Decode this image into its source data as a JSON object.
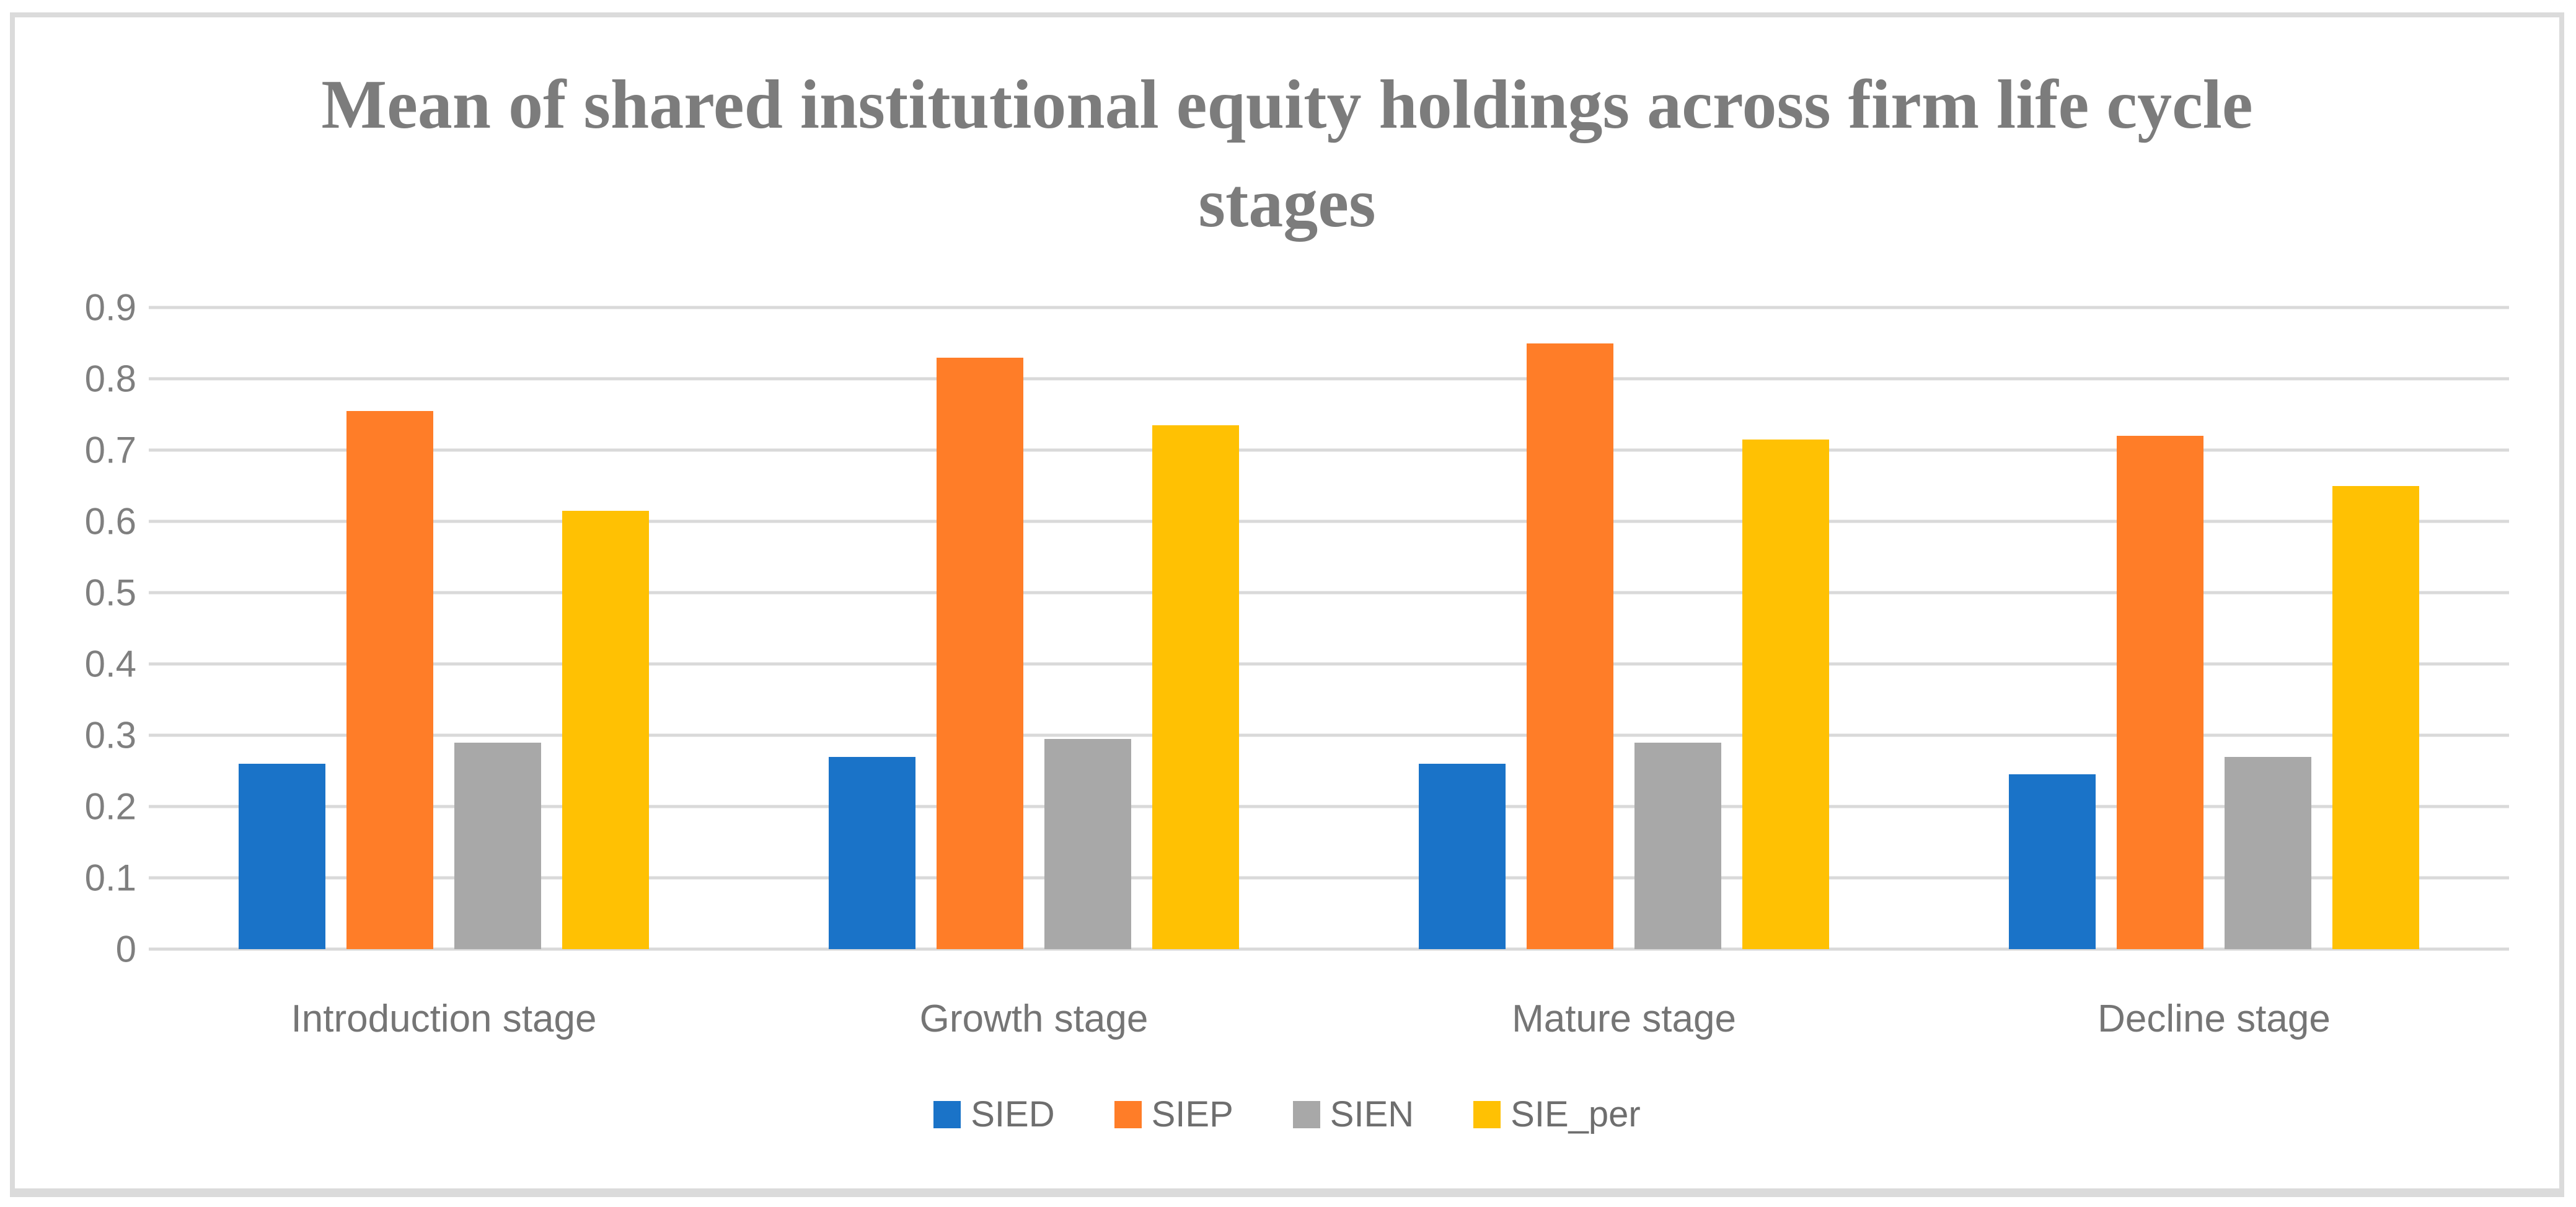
{
  "chart_data": {
    "type": "bar",
    "title": "Mean of shared institutional equity holdings across firm life cycle stages",
    "xlabel": "",
    "ylabel": "",
    "ylim": [
      0,
      0.9
    ],
    "grid": true,
    "legend_position": "bottom",
    "ytick_labels_top_to_bottom": [
      "0.9",
      "0.8",
      "0.7",
      "0.6",
      "0.5",
      "0.4",
      "0.3",
      "0.2",
      "0.1",
      "0"
    ],
    "categories": [
      "Introduction stage",
      "Growth stage",
      "Mature stage",
      "Decline stage"
    ],
    "series": [
      {
        "name": "SIED",
        "color": "#1a73c8",
        "values": [
          0.26,
          0.27,
          0.26,
          0.245
        ]
      },
      {
        "name": "SIEP",
        "color": "#ff7d28",
        "values": [
          0.755,
          0.83,
          0.85,
          0.72
        ]
      },
      {
        "name": "SIEN",
        "color": "#a8a8a8",
        "values": [
          0.29,
          0.295,
          0.29,
          0.27
        ]
      },
      {
        "name": "SIE_per",
        "color": "#ffc103",
        "values": [
          0.615,
          0.735,
          0.715,
          0.65
        ]
      }
    ]
  },
  "colors": {
    "gridline": "#d9d9d9",
    "figure_border": "#dbdbdb",
    "title_text": "#7c7c7c",
    "axis_text": "#7f7f7f",
    "legend_text": "#6e6e6e",
    "background": "#ffffff"
  }
}
